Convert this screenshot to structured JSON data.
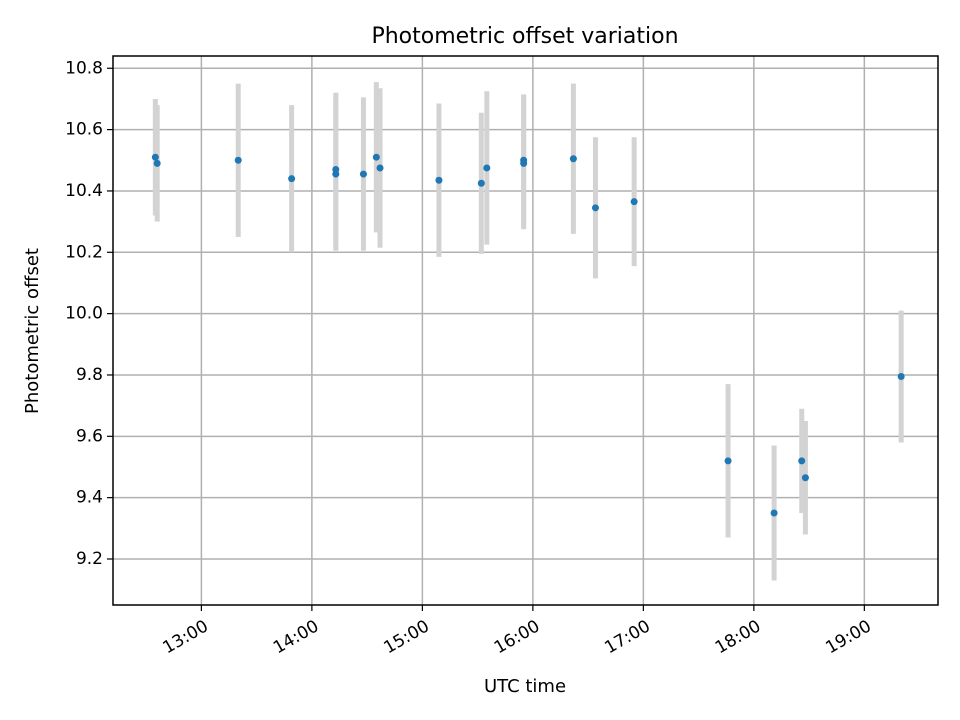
{
  "chart_data": {
    "type": "scatter",
    "title": "Photometric offset variation",
    "xlabel": "UTC time",
    "ylabel": "Photometric offset",
    "x_axis_type": "time",
    "xlim": [
      "12:12",
      "19:40"
    ],
    "ylim": [
      9.05,
      10.84
    ],
    "x_ticks": [
      "13:00",
      "14:00",
      "15:00",
      "16:00",
      "17:00",
      "18:00",
      "19:00"
    ],
    "y_ticks": [
      9.2,
      9.4,
      9.6,
      9.8,
      10.0,
      10.2,
      10.4,
      10.6,
      10.8
    ],
    "y_tick_labels": [
      "9.2",
      "9.4",
      "9.6",
      "9.8",
      "10.0",
      "10.2",
      "10.4",
      "10.6",
      "10.8"
    ],
    "x_tick_rotation": "30deg",
    "grid": true,
    "legend": false,
    "colors": {
      "points": "#1f77b4",
      "error_bars": "#d3d3d3",
      "grid": "#b0b0b0"
    },
    "points": [
      {
        "time": "12:35",
        "y": 10.51,
        "err": 0.19
      },
      {
        "time": "12:36",
        "y": 10.49,
        "err": 0.19
      },
      {
        "time": "13:20",
        "y": 10.5,
        "err": 0.25
      },
      {
        "time": "13:49",
        "y": 10.44,
        "err": 0.24
      },
      {
        "time": "14:13",
        "y": 10.47,
        "err": 0.25
      },
      {
        "time": "14:13",
        "y": 10.455,
        "err": 0.25
      },
      {
        "time": "14:28",
        "y": 10.455,
        "err": 0.25
      },
      {
        "time": "14:35",
        "y": 10.51,
        "err": 0.245
      },
      {
        "time": "14:37",
        "y": 10.475,
        "err": 0.26
      },
      {
        "time": "15:09",
        "y": 10.435,
        "err": 0.25
      },
      {
        "time": "15:32",
        "y": 10.425,
        "err": 0.23
      },
      {
        "time": "15:35",
        "y": 10.475,
        "err": 0.25
      },
      {
        "time": "15:55",
        "y": 10.5,
        "err": 0.215
      },
      {
        "time": "15:55",
        "y": 10.49,
        "err": 0.215
      },
      {
        "time": "16:22",
        "y": 10.505,
        "err": 0.245
      },
      {
        "time": "16:34",
        "y": 10.345,
        "err": 0.23
      },
      {
        "time": "16:55",
        "y": 10.365,
        "err": 0.21
      },
      {
        "time": "17:46",
        "y": 9.52,
        "err": 0.25
      },
      {
        "time": "18:11",
        "y": 9.35,
        "err": 0.22
      },
      {
        "time": "18:26",
        "y": 9.52,
        "err": 0.17
      },
      {
        "time": "18:28",
        "y": 9.465,
        "err": 0.185
      },
      {
        "time": "19:20",
        "y": 9.795,
        "err": 0.215
      }
    ]
  }
}
